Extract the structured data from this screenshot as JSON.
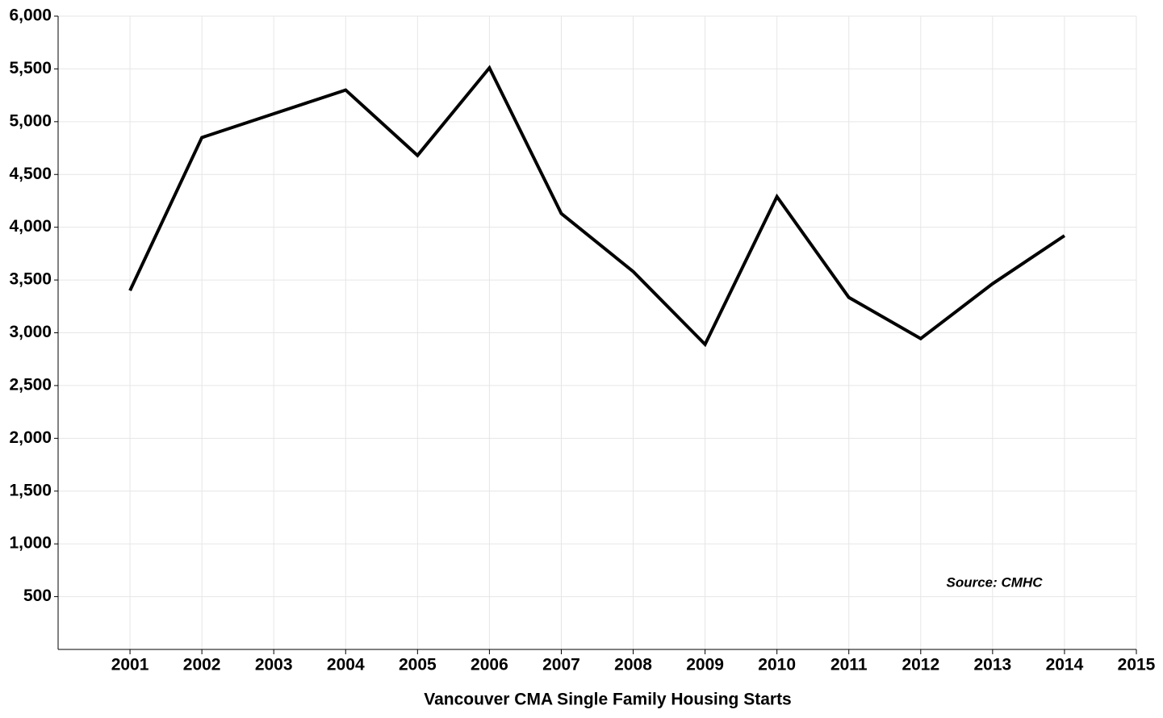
{
  "chart_data": {
    "type": "line",
    "title": "Vancouver CMA Single Family Housing Starts",
    "annotation": "Source: CMHC",
    "x": [
      2001,
      2002,
      2003,
      2004,
      2005,
      2006,
      2007,
      2008,
      2009,
      2010,
      2011,
      2012,
      2013,
      2014
    ],
    "values": [
      3400,
      4850,
      5075,
      5300,
      4680,
      5510,
      4130,
      3580,
      2890,
      4290,
      3335,
      2945,
      3465,
      3920
    ],
    "color": "#000000",
    "xlim": [
      2000,
      2015
    ],
    "xticks": [
      2001,
      2002,
      2003,
      2004,
      2005,
      2006,
      2007,
      2008,
      2009,
      2010,
      2011,
      2012,
      2013,
      2014,
      2015
    ],
    "ylim": [
      0,
      6000
    ],
    "yticks": [
      500,
      {
        "value": 1000,
        "label": "1,000"
      },
      {
        "value": 1500,
        "label": "1,500"
      },
      {
        "value": 2000,
        "label": "2,000"
      },
      {
        "value": 2500,
        "label": "2,500"
      },
      {
        "value": 3000,
        "label": "3,000"
      },
      {
        "value": 3500,
        "label": "3,500"
      },
      {
        "value": 4000,
        "label": "4,000"
      },
      {
        "value": 4500,
        "label": "4,500"
      },
      {
        "value": 5000,
        "label": "5,000"
      },
      {
        "value": 5500,
        "label": "5,500"
      },
      {
        "value": 6000,
        "label": "6,000"
      }
    ],
    "grid": true
  }
}
